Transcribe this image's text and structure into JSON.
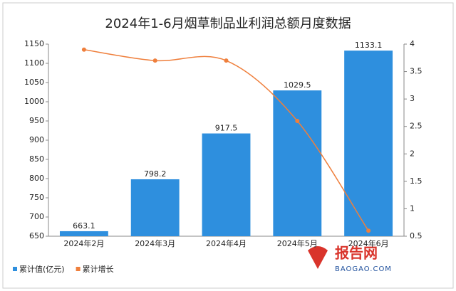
{
  "chart_data": {
    "type": "bar_line",
    "title": "2024年1-6月烟草制品业利润总额月度数据",
    "categories": [
      "2024年2月",
      "2024年3月",
      "2024年4月",
      "2024年5月",
      "2024年6月"
    ],
    "series": [
      {
        "name": "累计值(亿元)",
        "color": "#2e8fde",
        "type": "bar",
        "values": [
          663.1,
          798.2,
          917.5,
          1029.5,
          1133.1
        ]
      },
      {
        "name": "累计增长",
        "color": "#ef7f3c",
        "type": "line",
        "axis": "y2",
        "values": [
          3.9,
          3.7,
          3.7,
          2.6,
          0.6
        ]
      }
    ],
    "ylim": [
      650,
      1150
    ],
    "yticks": [
      650,
      700,
      750,
      800,
      850,
      900,
      950,
      1000,
      1050,
      1100,
      1150
    ],
    "y2lim": [
      0.5,
      4
    ],
    "y2ticks": [
      0.5,
      1,
      1.5,
      2,
      2.5,
      3,
      3.5,
      4
    ],
    "watermark": {
      "name": "报告网",
      "url": "BAOGAO.COM"
    }
  }
}
